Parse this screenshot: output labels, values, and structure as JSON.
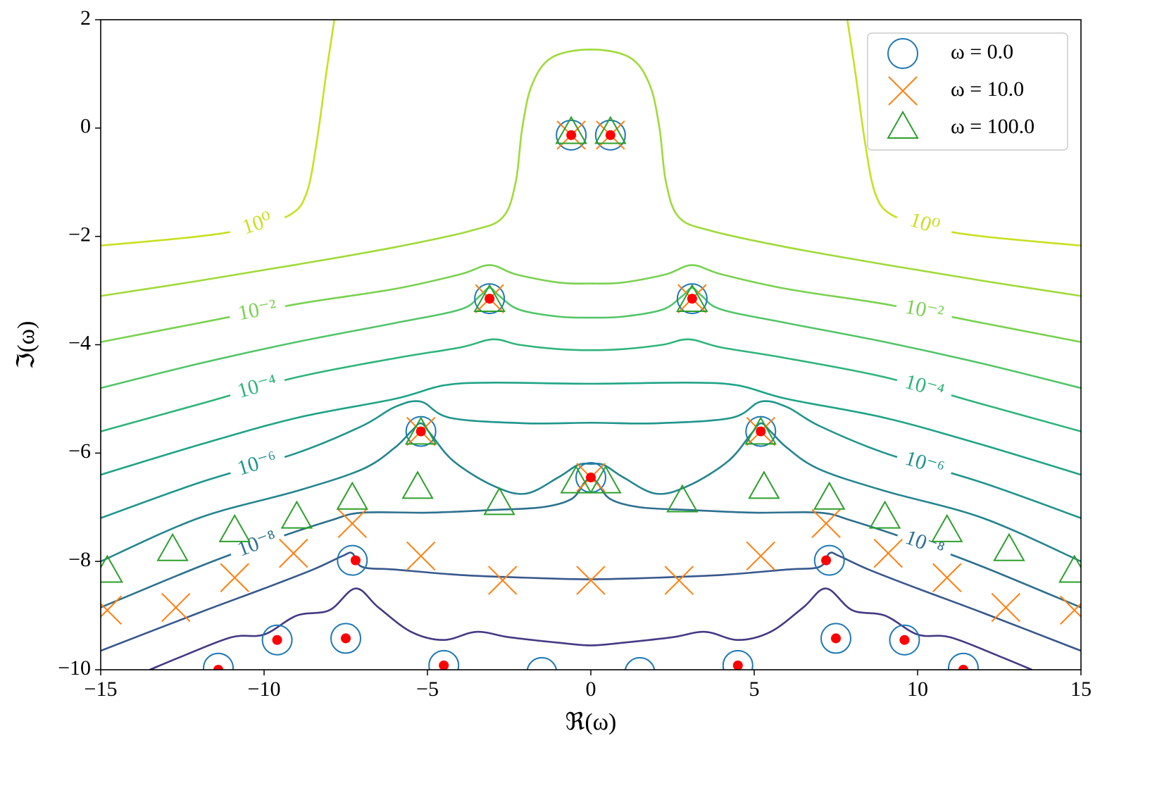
{
  "chart_data": {
    "type": "contour",
    "xlabel": "ℜ(ω)",
    "ylabel": "ℑ(ω)",
    "xlim": [
      -15,
      15
    ],
    "ylim": [
      -10,
      2
    ],
    "xticks": [
      {
        "value": -15,
        "label": "−15"
      },
      {
        "value": -10,
        "label": "−10"
      },
      {
        "value": -5,
        "label": "−5"
      },
      0,
      5,
      10,
      15
    ],
    "yticks": [
      {
        "value": -10,
        "label": "−10"
      },
      {
        "value": -8,
        "label": "−8"
      },
      {
        "value": -6,
        "label": "−6"
      },
      {
        "value": -4,
        "label": "−4"
      },
      {
        "value": -2,
        "label": "−2"
      },
      0,
      2
    ],
    "legend": "upper right",
    "contours": [
      {
        "label": "10⁰",
        "color": "#c8e020",
        "x": [
          -15,
          -12,
          -10.5,
          -9.2,
          -8.7,
          -8.4,
          -8.1,
          -7.85,
          null,
          7.85,
          8.1,
          8.4,
          8.7,
          9.2,
          10.5,
          12,
          15
        ],
        "y": [
          -2.17,
          -2.0,
          -1.85,
          -1.6,
          -1.2,
          -0.3,
          1.0,
          2.0,
          null,
          2.0,
          1.0,
          -0.3,
          -1.2,
          -1.6,
          -1.85,
          -2.0,
          -2.17
        ]
      },
      {
        "color": "#a0da39",
        "x": [
          -15,
          -12,
          -9,
          -6,
          -3.7,
          -2.7,
          -2.3,
          -2.1,
          -1.8,
          -1.2,
          0,
          1.2,
          1.8,
          2.1,
          2.3,
          2.7,
          3.7,
          6,
          9,
          12,
          15
        ],
        "y": [
          -3.1,
          -2.82,
          -2.52,
          -2.2,
          -1.9,
          -1.65,
          -1.0,
          0,
          0.8,
          1.3,
          1.45,
          1.3,
          0.8,
          0,
          -1.0,
          -1.65,
          -1.9,
          -2.2,
          -2.52,
          -2.82,
          -3.1
        ]
      },
      {
        "label": "10⁻²",
        "color": "#7ad151",
        "x": [
          -15,
          -12,
          -9,
          -6,
          -4,
          -3.1,
          -2.3,
          -1,
          0,
          1,
          2.3,
          3.1,
          4,
          6,
          9,
          12,
          15
        ],
        "y": [
          -3.95,
          -3.6,
          -3.25,
          -2.97,
          -2.7,
          -2.53,
          -2.7,
          -2.85,
          -2.87,
          -2.85,
          -2.7,
          -2.53,
          -2.7,
          -2.97,
          -3.25,
          -3.6,
          -3.95
        ]
      },
      {
        "color": "#52c569",
        "x": [
          -15,
          -12,
          -9,
          -6,
          -4,
          -3.4,
          -3.1,
          -2.8,
          -2.2,
          -1,
          0,
          1,
          2.2,
          2.8,
          3.1,
          3.4,
          4,
          6,
          9,
          12,
          15
        ],
        "y": [
          -4.8,
          -4.35,
          -3.95,
          -3.6,
          -3.35,
          -3.1,
          -2.95,
          -3.1,
          -3.35,
          -3.48,
          -3.5,
          -3.48,
          -3.35,
          -3.1,
          -2.95,
          -3.1,
          -3.35,
          -3.6,
          -3.95,
          -4.35,
          -4.8
        ]
      },
      {
        "label": "10⁻⁴",
        "color": "#2fb47c",
        "x": [
          -15,
          -12,
          -9,
          -6,
          -4,
          -3,
          -2.2,
          -1,
          0,
          1,
          2.2,
          3,
          4,
          6,
          9,
          12,
          15
        ],
        "y": [
          -5.6,
          -5.1,
          -4.6,
          -4.25,
          -4.05,
          -3.9,
          -4.0,
          -4.08,
          -4.1,
          -4.08,
          -4.0,
          -3.9,
          -4.05,
          -4.25,
          -4.6,
          -5.1,
          -5.6
        ]
      },
      {
        "color": "#20a486",
        "x": [
          -15,
          -12,
          -9,
          -6,
          -4.5,
          -3,
          0,
          3,
          4.5,
          6,
          9,
          12,
          15
        ],
        "y": [
          -6.4,
          -5.85,
          -5.35,
          -5.0,
          -4.75,
          -4.7,
          -4.72,
          -4.7,
          -4.75,
          -5.0,
          -5.35,
          -5.85,
          -6.4
        ]
      },
      {
        "label": "10⁻⁶",
        "color": "#1f958b",
        "x": [
          -15,
          -12,
          -9,
          -7,
          -6,
          -5.2,
          -4.3,
          -2,
          0,
          2,
          4.3,
          5.2,
          6,
          7,
          9,
          12,
          15
        ],
        "y": [
          -7.2,
          -6.55,
          -6.0,
          -5.5,
          -5.15,
          -5.05,
          -5.35,
          -5.45,
          -5.44,
          -5.45,
          -5.35,
          -5.05,
          -5.15,
          -5.5,
          -6.0,
          -6.55,
          -7.2
        ]
      },
      {
        "color": "#25858e",
        "x": [
          -15,
          -12,
          -9,
          -7,
          -6,
          -5.5,
          -5.2,
          -4.9,
          -4.2,
          -3,
          -2,
          -1,
          -0.4,
          0,
          0.4,
          1,
          2,
          3,
          4.2,
          4.9,
          5.2,
          5.5,
          6,
          7,
          9,
          12,
          15
        ],
        "y": [
          -8.0,
          -7.2,
          -6.7,
          -6.3,
          -5.9,
          -5.6,
          -5.45,
          -5.65,
          -6.15,
          -6.6,
          -6.75,
          -6.45,
          -6.22,
          -6.2,
          -6.22,
          -6.45,
          -6.75,
          -6.6,
          -6.15,
          -5.65,
          -5.45,
          -5.6,
          -5.9,
          -6.3,
          -6.7,
          -7.2,
          -8.0
        ]
      },
      {
        "label": "10⁻⁸",
        "color": "#2d708e",
        "x": [
          -15,
          -12,
          -10,
          -8,
          -7,
          -5,
          -3,
          -1.5,
          -0.6,
          -0.2,
          0,
          0.2,
          0.6,
          1.5,
          3,
          5,
          7,
          8,
          10,
          12,
          15
        ],
        "y": [
          -8.85,
          -8.1,
          -7.65,
          -7.25,
          -7.1,
          -7.1,
          -7.05,
          -7.0,
          -6.85,
          -6.55,
          -6.45,
          -6.55,
          -6.85,
          -7.0,
          -7.05,
          -7.1,
          -7.1,
          -7.25,
          -7.65,
          -8.1,
          -8.85
        ]
      },
      {
        "color": "#38588c",
        "x": [
          -15,
          -12,
          -10,
          -8.5,
          -7.6,
          -7.3,
          -7.0,
          -6,
          -4,
          -2,
          0,
          2,
          4,
          6,
          7.0,
          7.3,
          7.6,
          8.5,
          10,
          12,
          15
        ],
        "y": [
          -9.65,
          -8.95,
          -8.5,
          -8.15,
          -7.9,
          -7.85,
          -8.1,
          -8.15,
          -8.25,
          -8.3,
          -8.33,
          -8.3,
          -8.25,
          -8.15,
          -8.1,
          -7.85,
          -7.9,
          -8.15,
          -8.5,
          -8.95,
          -9.65
        ]
      },
      {
        "color": "#443a83",
        "x": [
          -13.5,
          -12.5,
          -11,
          -10,
          -9,
          -8,
          -7.2,
          -6.5,
          -5.5,
          -4.5,
          -3.5,
          -2.5,
          -1,
          0,
          1,
          2.5,
          3.5,
          4.5,
          5.5,
          6.5,
          7.2,
          8,
          9,
          10,
          11,
          12.5,
          13.5
        ],
        "y": [
          -10,
          -9.75,
          -9.4,
          -9.35,
          -9.0,
          -8.9,
          -8.5,
          -8.85,
          -9.3,
          -9.45,
          -9.3,
          -9.4,
          -9.5,
          -9.55,
          -9.5,
          -9.4,
          -9.3,
          -9.45,
          -9.3,
          -8.85,
          -8.5,
          -8.9,
          -9.0,
          -9.35,
          -9.4,
          -9.75,
          -10
        ]
      }
    ],
    "series": [
      {
        "name": "ω = 0.0",
        "color": "#1f77b4",
        "marker": "circle",
        "x": [
          -0.6,
          0.6,
          -3.1,
          3.1,
          -5.2,
          5.2,
          0,
          -7.3,
          7.3,
          -9.6,
          9.6,
          -7.5,
          7.5,
          -11.4,
          11.4,
          -4.5,
          4.5,
          -1.5,
          1.5
        ],
        "y": [
          -0.13,
          -0.13,
          -3.15,
          -3.15,
          -5.6,
          -5.6,
          -6.45,
          -7.98,
          -7.98,
          -9.45,
          -9.45,
          -9.42,
          -9.42,
          -9.97,
          -9.97,
          -9.92,
          -9.92,
          -10.05,
          -10.05
        ]
      },
      {
        "name": "ω = 10.0",
        "color": "#ff7f0e",
        "marker": "x",
        "x": [
          -0.6,
          0.6,
          -3.1,
          3.1,
          -5.2,
          5.2,
          0,
          -7.3,
          7.2,
          -9.1,
          9.1,
          -5.2,
          5.2,
          -2.7,
          0,
          2.7,
          -10.9,
          10.9,
          -12.7,
          12.7,
          -14.8,
          14.8
        ],
        "y": [
          -0.13,
          -0.13,
          -3.15,
          -3.15,
          -5.6,
          -5.6,
          -6.45,
          -7.3,
          -7.3,
          -7.85,
          -7.85,
          -7.9,
          -7.9,
          -8.35,
          -8.35,
          -8.35,
          -8.3,
          -8.3,
          -8.85,
          -8.85,
          -8.9,
          -8.9
        ]
      },
      {
        "name": "ω = 100.0",
        "color": "#2ca02c",
        "marker": "triangle",
        "x": [
          -0.6,
          0.6,
          -3.1,
          3.1,
          -5.2,
          5.2,
          -0.45,
          0.45,
          -5.3,
          5.3,
          -2.8,
          2.8,
          -7.3,
          7.3,
          -9.0,
          9.0,
          -10.9,
          10.9,
          -12.8,
          12.8,
          -14.8,
          14.8
        ],
        "y": [
          -0.1,
          -0.1,
          -3.2,
          -3.2,
          -5.65,
          -5.65,
          -6.55,
          -6.55,
          -6.65,
          -6.65,
          -6.95,
          -6.9,
          -6.85,
          -6.85,
          -7.2,
          -7.2,
          -7.45,
          -7.45,
          -7.8,
          -7.8,
          -8.2,
          -8.2
        ]
      },
      {
        "color": "#ff0000",
        "marker": "dot",
        "x": [
          -0.6,
          0.6,
          -3.1,
          3.1,
          -5.2,
          5.2,
          0,
          -7.2,
          7.2,
          -9.6,
          9.6,
          -7.5,
          7.5,
          -11.4,
          11.4,
          -4.5,
          4.5
        ],
        "y": [
          -0.13,
          -0.13,
          -3.15,
          -3.15,
          -5.6,
          -5.6,
          -6.45,
          -7.98,
          -7.98,
          -9.45,
          -9.45,
          -9.42,
          -9.42,
          -10,
          -10,
          -9.92,
          -9.92
        ]
      }
    ]
  }
}
